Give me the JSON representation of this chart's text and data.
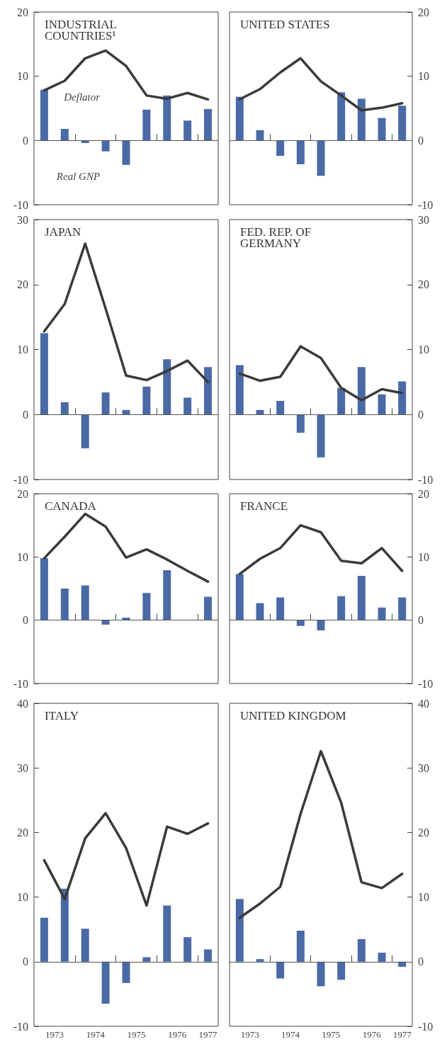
{
  "chart_data": [
    {
      "type": "bar",
      "title": "INDUSTRIAL COUNTRIES¹",
      "x": [
        1973.25,
        1973.75,
        1974.25,
        1974.75,
        1975.25,
        1975.75,
        1976.25,
        1976.75,
        1977.25
      ],
      "marker": "none",
      "tick_labels": "y",
      "series": [
        {
          "name": "Real GNP",
          "color": "#4a6aa5",
          "values": [
            7.9,
            1.8,
            -0.4,
            -1.7,
            -3.8,
            4.8,
            7.0,
            3.1,
            4.9
          ]
        },
        {
          "name": "Deflator",
          "type": "line",
          "color": "#3a3a3a",
          "values": [
            7.8,
            9.3,
            12.8,
            14.0,
            11.6,
            7.0,
            6.5,
            7.4,
            6.4
          ]
        }
      ],
      "ylim": [
        -10,
        20
      ],
      "yticks": [
        -10,
        0,
        10,
        20
      ],
      "xlim": [
        1973,
        1977.5
      ],
      "xticks": [
        {
          "value": 1973.5,
          "label": "1973"
        },
        {
          "value": 1974,
          "label": null
        },
        {
          "value": 1974.5,
          "label": "1974"
        },
        {
          "value": 1975,
          "label": null
        },
        {
          "value": 1975.5,
          "label": "1975"
        },
        {
          "value": 1976,
          "label": null
        },
        {
          "value": 1976.5,
          "label": "1976"
        },
        {
          "value": 1977,
          "label": null
        },
        {
          "value": 1977.25,
          "label": "1977"
        }
      ],
      "ref_lines": [
        {
          "axis": "y",
          "value": 0
        }
      ]
    },
    {
      "type": "bar",
      "title": "UNITED STATES",
      "x": [
        1973.25,
        1973.75,
        1974.25,
        1974.75,
        1975.25,
        1975.75,
        1976.25,
        1976.75,
        1977.25
      ],
      "marker": "none",
      "tick_labels": "y",
      "series": [
        {
          "color": "#4a6aa5",
          "values": [
            6.8,
            1.6,
            -2.4,
            -3.7,
            -5.5,
            7.5,
            6.5,
            3.5,
            5.4
          ]
        },
        {
          "type": "line",
          "color": "#3a3a3a",
          "values": [
            6.4,
            8.0,
            10.6,
            12.8,
            9.2,
            7.0,
            4.7,
            5.1,
            5.8
          ]
        }
      ],
      "ylim": [
        -10,
        20
      ],
      "yticks": [
        -10,
        0,
        10,
        20
      ],
      "xlim": [
        1973,
        1977.5
      ],
      "xticks": [
        {
          "value": 1973.5,
          "label": "1973"
        },
        {
          "value": 1974,
          "label": null
        },
        {
          "value": 1974.5,
          "label": "1974"
        },
        {
          "value": 1975,
          "label": null
        },
        {
          "value": 1975.5,
          "label": "1975"
        },
        {
          "value": 1976,
          "label": null
        },
        {
          "value": 1976.5,
          "label": "1976"
        },
        {
          "value": 1977,
          "label": null
        },
        {
          "value": 1977.25,
          "label": "1977"
        }
      ],
      "ref_lines": [
        {
          "axis": "y",
          "value": 0
        }
      ]
    },
    {
      "type": "bar",
      "title": "JAPAN",
      "x": [
        1973.25,
        1973.75,
        1974.25,
        1974.75,
        1975.25,
        1975.75,
        1976.25,
        1976.75,
        1977.25
      ],
      "marker": "none",
      "tick_labels": "y",
      "series": [
        {
          "color": "#4a6aa5",
          "values": [
            12.5,
            1.9,
            -5.2,
            3.4,
            0.7,
            4.3,
            8.5,
            2.6,
            7.3
          ]
        },
        {
          "type": "line",
          "color": "#3a3a3a",
          "values": [
            12.8,
            17.0,
            26.3,
            16.3,
            6.0,
            5.3,
            6.7,
            8.3,
            5.0
          ]
        }
      ],
      "ylim": [
        -10,
        30
      ],
      "yticks": [
        -10,
        0,
        10,
        20,
        30
      ],
      "xlim": [
        1973,
        1977.5
      ],
      "xticks": [
        {
          "value": 1973.5,
          "label": "1973"
        },
        {
          "value": 1974,
          "label": null
        },
        {
          "value": 1974.5,
          "label": "1974"
        },
        {
          "value": 1975,
          "label": null
        },
        {
          "value": 1975.5,
          "label": "1975"
        },
        {
          "value": 1976,
          "label": null
        },
        {
          "value": 1976.5,
          "label": "1976"
        },
        {
          "value": 1977,
          "label": null
        },
        {
          "value": 1977.25,
          "label": "1977"
        }
      ],
      "ref_lines": [
        {
          "axis": "y",
          "value": 0
        }
      ]
    },
    {
      "type": "bar",
      "title": "FED. REP. OF GERMANY",
      "x": [
        1973.25,
        1973.75,
        1974.25,
        1974.75,
        1975.25,
        1975.75,
        1976.25,
        1976.75,
        1977.25
      ],
      "marker": "none",
      "tick_labels": "y",
      "series": [
        {
          "color": "#4a6aa5",
          "values": [
            7.6,
            0.7,
            2.1,
            -2.8,
            -6.6,
            4.1,
            7.3,
            3.1,
            5.1
          ]
        },
        {
          "type": "line",
          "color": "#3a3a3a",
          "values": [
            6.3,
            5.2,
            5.8,
            10.5,
            8.7,
            4.1,
            2.2,
            3.9,
            3.3
          ]
        }
      ],
      "ylim": [
        -10,
        30
      ],
      "yticks": [
        -10,
        0,
        10,
        20,
        30
      ],
      "xlim": [
        1973,
        1977.5
      ],
      "xticks": [
        {
          "value": 1973.5,
          "label": "1973"
        },
        {
          "value": 1974,
          "label": null
        },
        {
          "value": 1974.5,
          "label": "1974"
        },
        {
          "value": 1975,
          "label": null
        },
        {
          "value": 1975.5,
          "label": "1975"
        },
        {
          "value": 1976,
          "label": null
        },
        {
          "value": 1976.5,
          "label": "1976"
        },
        {
          "value": 1977,
          "label": null
        },
        {
          "value": 1977.25,
          "label": "1977"
        }
      ],
      "ref_lines": [
        {
          "axis": "y",
          "value": 0
        }
      ]
    },
    {
      "type": "bar",
      "title": "CANADA",
      "x": [
        1973.25,
        1973.75,
        1974.25,
        1974.75,
        1975.25,
        1975.75,
        1976.25,
        1976.75,
        1977.25
      ],
      "marker": "none",
      "tick_labels": "y",
      "series": [
        {
          "color": "#4a6aa5",
          "values": [
            9.8,
            5.0,
            5.5,
            -0.7,
            0.4,
            4.3,
            7.9,
            0,
            3.7
          ]
        },
        {
          "type": "line",
          "color": "#3a3a3a",
          "values": [
            9.8,
            13.2,
            16.8,
            14.8,
            9.9,
            11.2,
            9.6,
            7.8,
            6.1
          ]
        }
      ],
      "ylim": [
        -10,
        20
      ],
      "yticks": [
        -10,
        0,
        10,
        20
      ],
      "xlim": [
        1973,
        1977.5
      ],
      "xticks": [
        {
          "value": 1973.5,
          "label": "1973"
        },
        {
          "value": 1974,
          "label": null
        },
        {
          "value": 1974.5,
          "label": "1974"
        },
        {
          "value": 1975,
          "label": null
        },
        {
          "value": 1975.5,
          "label": "1975"
        },
        {
          "value": 1976,
          "label": null
        },
        {
          "value": 1976.5,
          "label": "1976"
        },
        {
          "value": 1977,
          "label": null
        },
        {
          "value": 1977.25,
          "label": "1977"
        }
      ],
      "ref_lines": [
        {
          "axis": "y",
          "value": 0
        }
      ]
    },
    {
      "type": "bar",
      "title": "FRANCE",
      "x": [
        1973.25,
        1973.75,
        1974.25,
        1974.75,
        1975.25,
        1975.75,
        1976.25,
        1976.75,
        1977.25
      ],
      "marker": "none",
      "tick_labels": "y",
      "series": [
        {
          "color": "#4a6aa5",
          "values": [
            7.3,
            2.7,
            3.6,
            -0.9,
            -1.6,
            3.8,
            7.0,
            2.0,
            3.6
          ]
        },
        {
          "type": "line",
          "color": "#3a3a3a",
          "values": [
            7.3,
            9.7,
            11.4,
            15.0,
            13.9,
            9.4,
            9.0,
            11.4,
            7.8
          ]
        }
      ],
      "ylim": [
        -10,
        20
      ],
      "yticks": [
        -10,
        0,
        10,
        20
      ],
      "xlim": [
        1973,
        1977.5
      ],
      "xticks": [
        {
          "value": 1973.5,
          "label": "1973"
        },
        {
          "value": 1974,
          "label": null
        },
        {
          "value": 1974.5,
          "label": "1974"
        },
        {
          "value": 1975,
          "label": null
        },
        {
          "value": 1975.5,
          "label": "1975"
        },
        {
          "value": 1976,
          "label": null
        },
        {
          "value": 1976.5,
          "label": "1976"
        },
        {
          "value": 1977,
          "label": null
        },
        {
          "value": 1977.25,
          "label": "1977"
        }
      ],
      "ref_lines": [
        {
          "axis": "y",
          "value": 0
        }
      ]
    },
    {
      "type": "bar",
      "title": "ITALY",
      "x": [
        1973.25,
        1973.75,
        1974.25,
        1974.75,
        1975.25,
        1975.75,
        1976.25,
        1976.75,
        1977.25
      ],
      "marker": "none",
      "series": [
        {
          "color": "#4a6aa5",
          "values": [
            6.8,
            11.3,
            5.1,
            -6.5,
            -3.3,
            0.7,
            8.7,
            3.8,
            1.9
          ]
        },
        {
          "type": "line",
          "color": "#3a3a3a",
          "values": [
            15.7,
            9.7,
            19.1,
            23.0,
            17.6,
            8.7,
            20.9,
            19.8,
            21.4
          ]
        }
      ],
      "ylim": [
        -10,
        40
      ],
      "yticks": [
        -10,
        0,
        10,
        20,
        30,
        40
      ],
      "xlim": [
        1973,
        1977.5
      ],
      "xticks": [
        {
          "value": 1973.5,
          "label": "1973"
        },
        {
          "value": 1974,
          "label": null
        },
        {
          "value": 1974.5,
          "label": "1974"
        },
        {
          "value": 1975,
          "label": null
        },
        {
          "value": 1975.5,
          "label": "1975"
        },
        {
          "value": 1976,
          "label": null
        },
        {
          "value": 1976.5,
          "label": "1976"
        },
        {
          "value": 1977,
          "label": null
        },
        {
          "value": 1977.25,
          "label": "1977"
        }
      ],
      "ref_lines": [
        {
          "axis": "y",
          "value": 0
        }
      ]
    },
    {
      "type": "bar",
      "title": "UNITED KINGDOM",
      "x": [
        1973.25,
        1973.75,
        1974.25,
        1974.75,
        1975.25,
        1975.75,
        1976.25,
        1976.75,
        1977.25
      ],
      "marker": "none",
      "series": [
        {
          "color": "#4a6aa5",
          "values": [
            9.7,
            0.4,
            -2.6,
            4.8,
            -3.8,
            -2.8,
            3.5,
            1.4,
            -0.8
          ]
        },
        {
          "type": "line",
          "color": "#3a3a3a",
          "values": [
            6.8,
            9.0,
            11.6,
            22.9,
            32.6,
            24.6,
            12.3,
            11.4,
            13.6
          ]
        }
      ],
      "ylim": [
        -10,
        40
      ],
      "yticks": [
        -10,
        0,
        10,
        20,
        30,
        40
      ],
      "xlim": [
        1973,
        1977.5
      ],
      "xticks": [
        {
          "value": 1973.5,
          "label": "1973"
        },
        {
          "value": 1974,
          "label": null
        },
        {
          "value": 1974.5,
          "label": "1974"
        },
        {
          "value": 1975,
          "label": null
        },
        {
          "value": 1975.5,
          "label": "1975"
        },
        {
          "value": 1976,
          "label": null
        },
        {
          "value": 1976.5,
          "label": "1976"
        },
        {
          "value": 1977,
          "label": null
        },
        {
          "value": 1977.25,
          "label": "1977"
        }
      ],
      "ref_lines": [
        {
          "axis": "y",
          "value": 0
        }
      ]
    }
  ]
}
